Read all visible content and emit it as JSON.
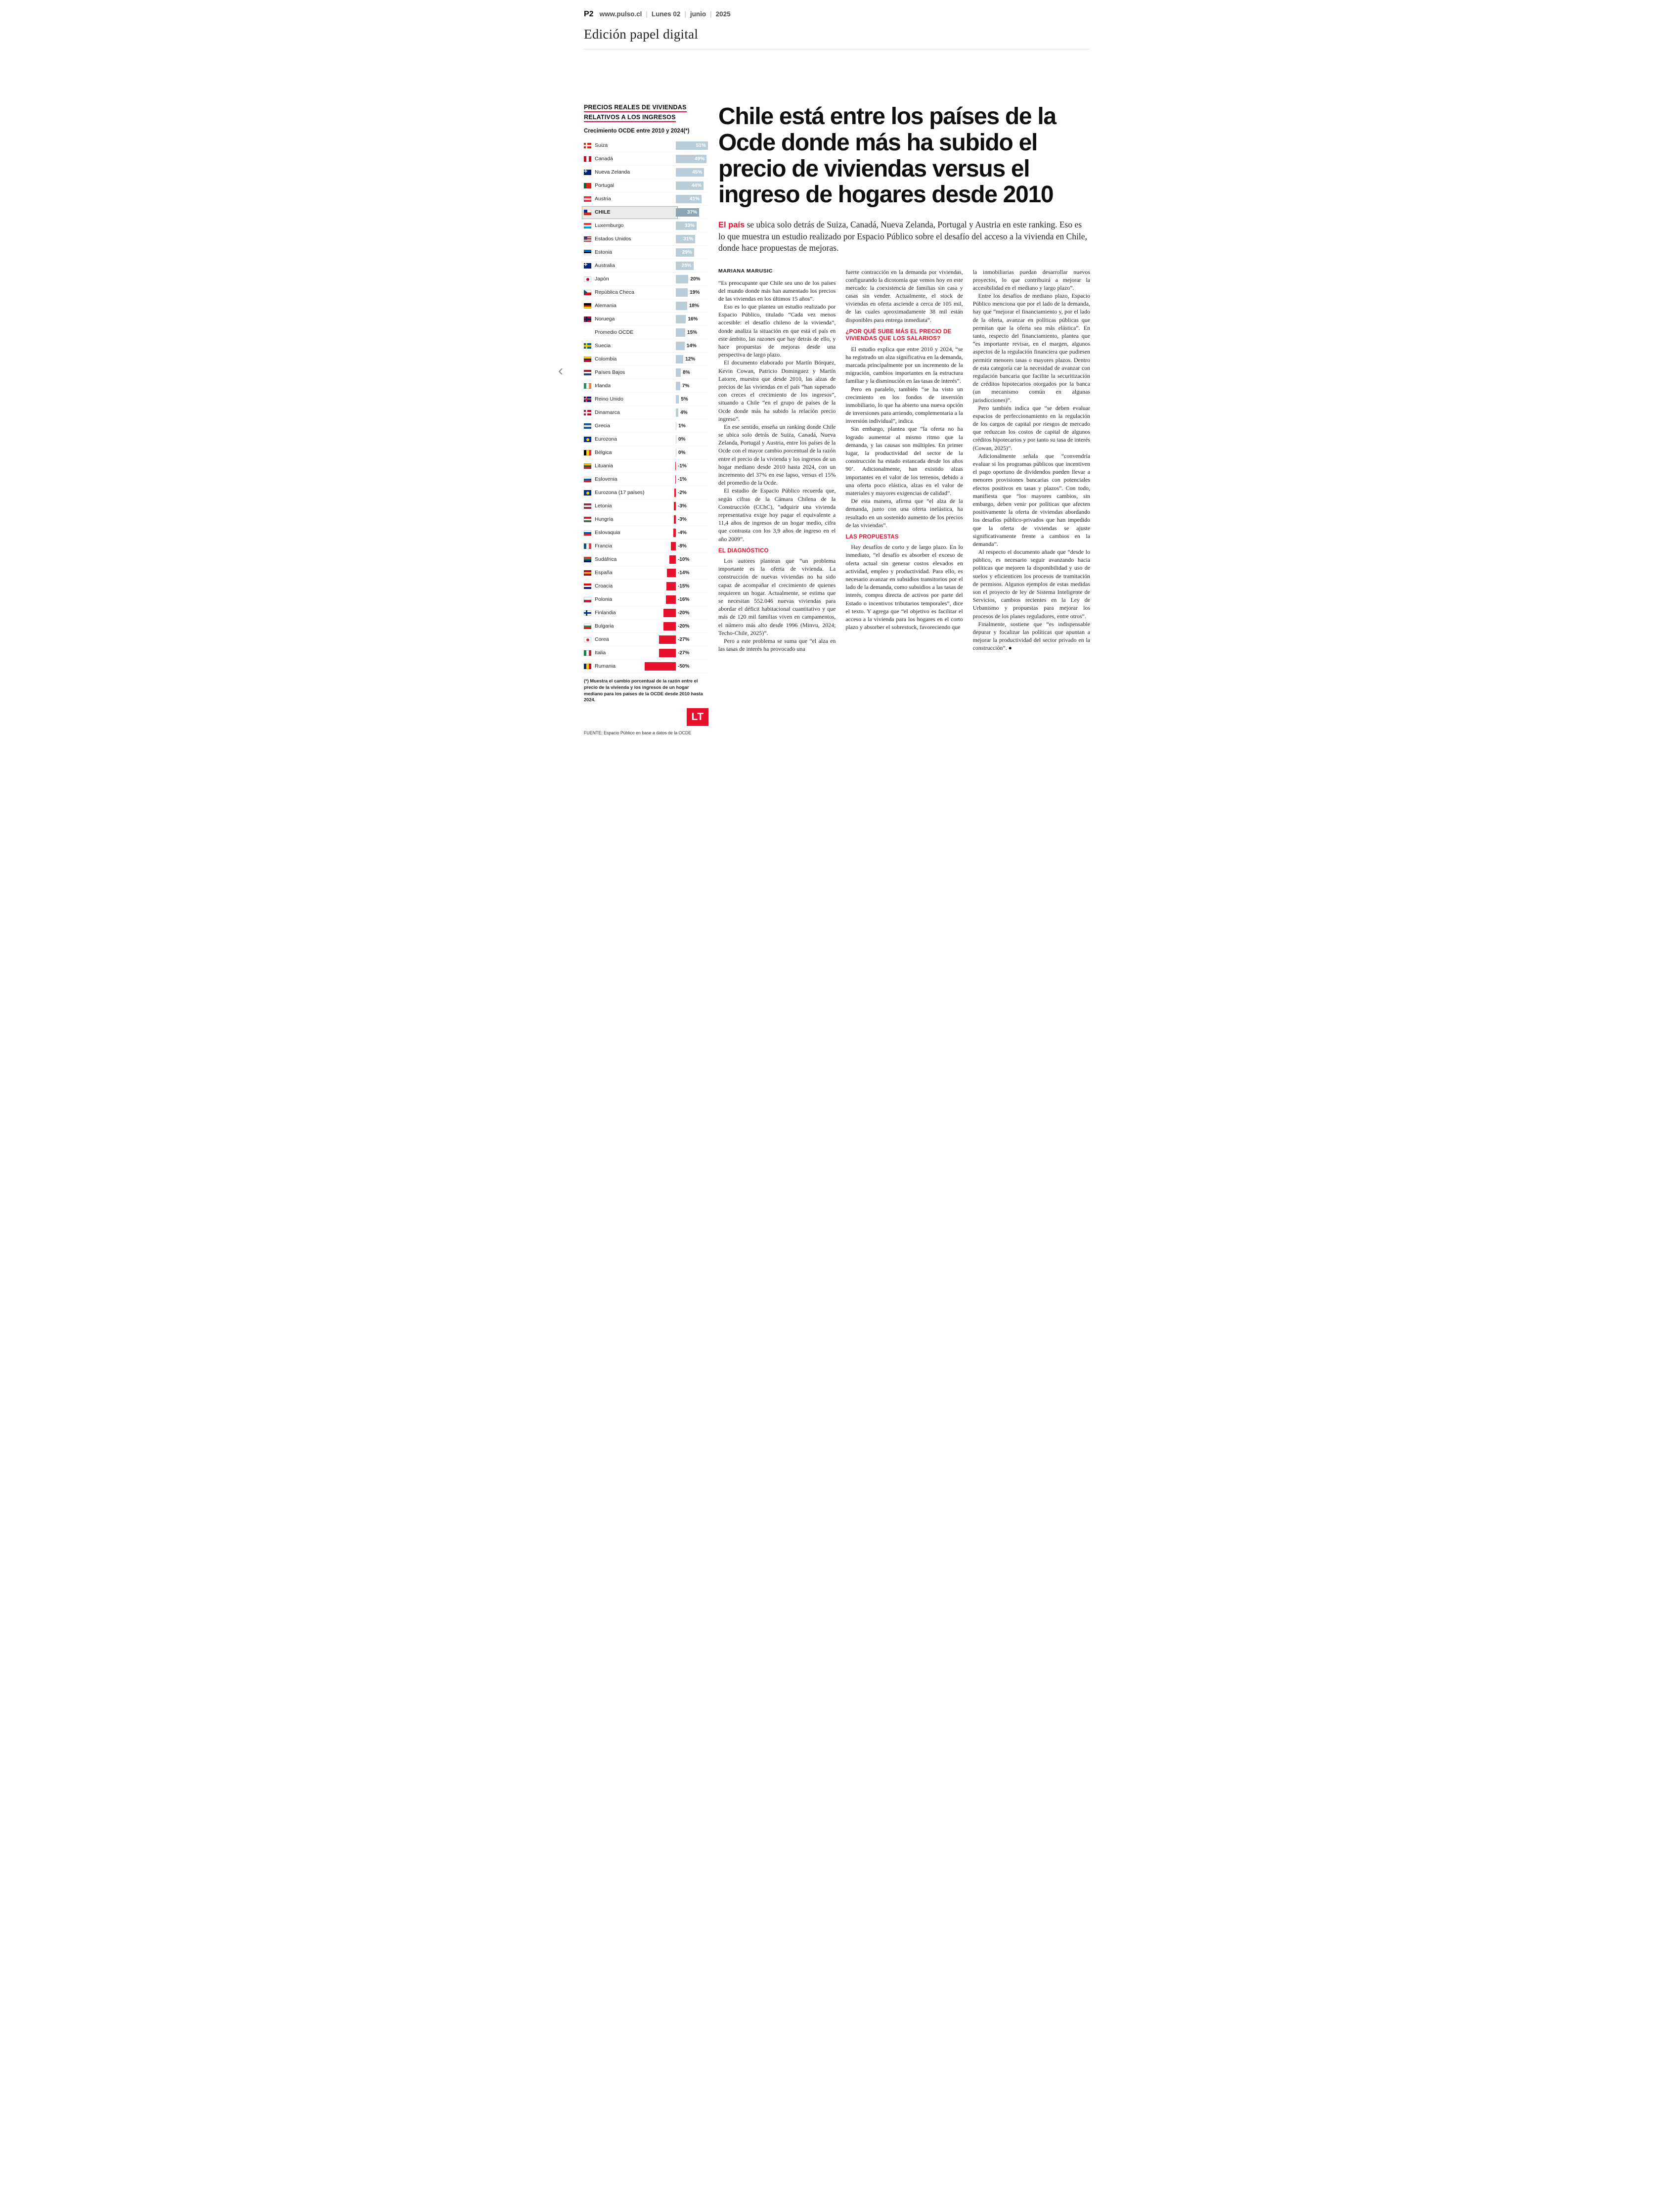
{
  "header": {
    "page_number": "P2",
    "site": "www.pulso.cl",
    "sep": "|",
    "day": "Lunes 02",
    "month": "junio",
    "year": "2025",
    "edition": "Edición papel digital"
  },
  "nav": {
    "prev": "‹"
  },
  "chart": {
    "title_line1": "PRECIOS REALES DE VIVIENDAS",
    "title_line2": "RELATIVOS A LOS INGRESOS",
    "subtitle": "Crecimiento OCDE entre 2010 y 2024(*)",
    "footnote": "(*) Muestra el cambio porcentual de la razón entre el precio de la vivienda y los ingresos de un hogar mediano para los países de la OCDE desde 2010 hasta 2024.",
    "source": "FUENTE: Espacio Público en base a datos de la OCDE",
    "logo_text": "LT",
    "colors": {
      "positive": "#b9cdd8",
      "highlight_bar": "#8aa6b6",
      "negative": "#e8112d",
      "accent": "#e8112d"
    }
  },
  "chart_data": {
    "type": "bar",
    "orientation": "horizontal",
    "title": "Precios reales de viviendas relativos a los ingresos",
    "subtitle": "Crecimiento OCDE entre 2010 y 2024 (*)",
    "unit": "%",
    "highlight": "CHILE",
    "categories": [
      "Suiza",
      "Canadá",
      "Nueva Zelanda",
      "Portugal",
      "Austria",
      "CHILE",
      "Luxemburgo",
      "Estados Unidos",
      "Estonia",
      "Australia",
      "Japón",
      "República Checa",
      "Alemania",
      "Noruega",
      "Promedio OCDE",
      "Suecia",
      "Colombia",
      "Países Bajos",
      "Irlanda",
      "Reino Unido",
      "Dinamarca",
      "Grecia",
      "Eurozona",
      "Bélgica",
      "Lituania",
      "Eslovenia",
      "Eurozona (17 países)",
      "Letonia",
      "Hungría",
      "Eslovaquia",
      "Francia",
      "Sudáfrica",
      "España",
      "Croacia",
      "Polonia",
      "Finlandia",
      "Bulgaria",
      "Corea",
      "Italia",
      "Rumania"
    ],
    "values": [
      51,
      49,
      45,
      44,
      41,
      37,
      33,
      31,
      29,
      28,
      20,
      19,
      18,
      16,
      15,
      14,
      12,
      8,
      7,
      5,
      4,
      1,
      0,
      0,
      -1,
      -1,
      -2,
      -3,
      -3,
      -4,
      -8,
      -10,
      -14,
      -15,
      -16,
      -20,
      -20,
      -27,
      -27,
      -50
    ],
    "flags": [
      {
        "t": "cross",
        "c": [
          "#da291c",
          "#ffffff"
        ]
      },
      {
        "t": "v",
        "c": [
          "#d80621",
          "#ffffff",
          "#d80621"
        ]
      },
      {
        "t": "ukcanton",
        "c": [
          "#00247d",
          "#ffffff"
        ]
      },
      {
        "t": "v",
        "c": [
          "#046a38",
          "#da291c",
          "#da291c"
        ]
      },
      {
        "t": "h",
        "c": [
          "#ef3340",
          "#ffffff",
          "#ef3340"
        ]
      },
      {
        "t": "chile",
        "c": [
          "#ffffff",
          "#d52b1e",
          "#0033a0"
        ]
      },
      {
        "t": "h",
        "c": [
          "#ef3340",
          "#ffffff",
          "#00a2e1"
        ]
      },
      {
        "t": "usa",
        "c": [
          "#b22234",
          "#ffffff",
          "#3c3b6e"
        ]
      },
      {
        "t": "h",
        "c": [
          "#0072ce",
          "#000000",
          "#ffffff"
        ]
      },
      {
        "t": "ukcanton",
        "c": [
          "#00247d",
          "#ffffff"
        ]
      },
      {
        "t": "circle",
        "c": [
          "#ffffff",
          "#bc002d"
        ]
      },
      {
        "t": "cz",
        "c": [
          "#ffffff",
          "#d7141a",
          "#11457e"
        ]
      },
      {
        "t": "h",
        "c": [
          "#000000",
          "#dd0000",
          "#ffce00"
        ]
      },
      {
        "t": "cross",
        "c": [
          "#ba0c2f",
          "#00205b"
        ]
      },
      {
        "t": "none",
        "c": []
      },
      {
        "t": "cross",
        "c": [
          "#006aa7",
          "#fecc02"
        ]
      },
      {
        "t": "h",
        "c": [
          "#ffcd00",
          "#003087",
          "#c8102e"
        ]
      },
      {
        "t": "h",
        "c": [
          "#ae1c28",
          "#ffffff",
          "#21468b"
        ]
      },
      {
        "t": "v",
        "c": [
          "#169b62",
          "#ffffff",
          "#ff883e"
        ]
      },
      {
        "t": "uk",
        "c": [
          "#00247d",
          "#ffffff",
          "#cf142b"
        ]
      },
      {
        "t": "cross",
        "c": [
          "#c8102e",
          "#ffffff"
        ]
      },
      {
        "t": "h",
        "c": [
          "#0d5eaf",
          "#ffffff",
          "#0d5eaf"
        ]
      },
      {
        "t": "circle",
        "c": [
          "#003399",
          "#ffcc00"
        ]
      },
      {
        "t": "v",
        "c": [
          "#000000",
          "#fdda24",
          "#ef3340"
        ]
      },
      {
        "t": "h",
        "c": [
          "#fdb913",
          "#006a44",
          "#c1272d"
        ]
      },
      {
        "t": "h",
        "c": [
          "#ffffff",
          "#005da4",
          "#ed1c24"
        ]
      },
      {
        "t": "circle",
        "c": [
          "#003399",
          "#ffcc00"
        ]
      },
      {
        "t": "h",
        "c": [
          "#9e3039",
          "#ffffff",
          "#9e3039"
        ]
      },
      {
        "t": "h",
        "c": [
          "#ce2939",
          "#ffffff",
          "#477050"
        ]
      },
      {
        "t": "h",
        "c": [
          "#ffffff",
          "#0b4ea2",
          "#ee1c25"
        ]
      },
      {
        "t": "v",
        "c": [
          "#0055a4",
          "#ffffff",
          "#ef4135"
        ]
      },
      {
        "t": "h",
        "c": [
          "#e03c31",
          "#007749",
          "#001489"
        ]
      },
      {
        "t": "h",
        "c": [
          "#aa151b",
          "#f1bf00",
          "#aa151b"
        ]
      },
      {
        "t": "h",
        "c": [
          "#ff0000",
          "#ffffff",
          "#171796"
        ]
      },
      {
        "t": "h",
        "c": [
          "#ffffff",
          "#dc143c"
        ]
      },
      {
        "t": "cross",
        "c": [
          "#ffffff",
          "#003580"
        ]
      },
      {
        "t": "h",
        "c": [
          "#ffffff",
          "#00966e",
          "#d62612"
        ]
      },
      {
        "t": "circle",
        "c": [
          "#ffffff",
          "#cd2e3a"
        ]
      },
      {
        "t": "v",
        "c": [
          "#009246",
          "#ffffff",
          "#ce2b37"
        ]
      },
      {
        "t": "v",
        "c": [
          "#002b7f",
          "#fcd116",
          "#ce1126"
        ]
      }
    ]
  },
  "article": {
    "headline": "Chile está entre los países de la Ocde donde más ha subido el precio de viviendas versus el ingreso de hogares desde 2010",
    "lead_accent": "El país",
    "lead_rest": " se ubica solo detrás de Suiza, Canadá, Nueva Zelanda, Portugal y Austria en este ranking. Eso es lo que muestra un estudio realizado por Espacio Público sobre el desafío del acceso a la vivienda en Chile, donde hace propuestas de mejoras.",
    "byline": "MARIANA MARUSIC",
    "columns": [
      [
        {
          "type": "p",
          "text": "“Es preocupante que Chile sea uno de los países del mundo donde más han aumentado los precios de las viviendas en los últimos 15 años”."
        },
        {
          "type": "p",
          "text": "Eso es lo que plantea un estudio realizado por Espacio Público, titulado “Cada vez menos accesible: el desafío chileno de la vivienda”, donde analiza la situación en que está el país en este ámbito, las razones que hay detrás de ello, y hace propuestas de mejoras desde una perspectiva de largo plazo."
        },
        {
          "type": "p",
          "text": "El documento elaborado por Martín Bórquez, Kevin Cowan, Patricio Dominguez y Martín Latorre, muestra que desde 2010, las alzas de precios de las viviendas en el país “han superado con creces el crecimiento de los ingresos”, situando a Chile “en el grupo de países de la Ocde donde más ha subido la relación precio ingreso”."
        },
        {
          "type": "p",
          "text": "En ese sentido, enseña un ranking donde Chile se ubica solo detrás de Suiza, Canadá, Nueva Zelanda, Portugal y Austria, entre los países de la Ocde con el mayor cambio porcentual de la razón entre el precio de la vivienda y los ingresos de un hogar mediano desde 2010 hasta 2024, con un incremento del 37% en ese lapso, versus el 15% del promedio de la Ocde."
        },
        {
          "type": "p",
          "text": "El estudio de Espacio Público recuerda que, según cifras de la Cámara Chilena de la Construcción (CChC), “adquirir una vivienda representativa exige hoy pagar el equivalente a 11,4 años de ingresos de un hogar medio, cifra que contrasta con los 3,9 años de ingreso en el año 2009”."
        },
        {
          "type": "h",
          "text": "EL DIAGNÓSTICO"
        },
        {
          "type": "p",
          "text": "Los autores plantean que “un problema importante es la oferta de vivienda. La construcción de nuevas viviendas no ha sido capaz de acompañar el crecimiento de quienes requieren un hogar. Actualmente, se estima que se necesitan 552.046 nuevas viviendas para abordar el déficit habitacional cuantitativo y que más de 120 mil familias viven en campamentos, el número más alto desde 1996 (Minvu, 2024; Techo-Chile, 2025)”."
        },
        {
          "type": "p",
          "text": "Pero a este problema se suma que “el alza en las tasas de interés ha provocado una"
        }
      ],
      [
        {
          "type": "p",
          "text": "fuerte contracción en la demanda por viviendas, configurando la dicotomía que vemos hoy en este mercado: la coexistencia de familias sin casa y casas sin vender. Actualmente, el stock de viviendas en oferta asciende a cerca de 105 mil, de las cuales aproximadamente 38 mil están disponibles para entrega inmediata”."
        },
        {
          "type": "h",
          "text": "¿POR QUÉ SUBE MÁS EL PRECIO DE VIVIENDAS QUE LOS SALARIOS?"
        },
        {
          "type": "p",
          "text": "El estudio explica que entre 2010 y 2024, “se ha registrado un alza significativa en la demanda, marcada principalmente por un incremento de la migración, cambios importantes en la estructura familiar y la disminución en las tasas de interés”."
        },
        {
          "type": "p",
          "text": "Pero en paralelo, también “se ha visto un crecimiento en los fondos de inversión inmobiliario, lo que ha abierto una nueva opción de inversiones para arriendo, complementaria a la inversión individual”, indica."
        },
        {
          "type": "p",
          "text": "Sin embargo, plantea que “la oferta no ha logrado aumentar al mismo ritmo que la demanda, y las causas son múltiples. En primer lugar, la productividad del sector de la construcción ha estado estancada desde los años 90’. Adicionalmente, han existido alzas importantes en el valor de los terrenos, debido a una oferta poco elástica, alzas en el valor de materiales y mayores exigencias de calidad”."
        },
        {
          "type": "p",
          "text": "De esta manera, afirma que “el alza de la demanda, junto con una oferta inelástica, ha resultado en un sostenido aumento de los precios de las viviendas”."
        },
        {
          "type": "h",
          "text": "LAS PROPUESTAS"
        },
        {
          "type": "p",
          "text": "Hay desafíos de corto y de largo plazo. En lo inmediato, “el desafío es absorber el exceso de oferta actual sin generar costos elevados en actividad, empleo y productividad. Para ello, es necesario avanzar en subsidios transitorios por el lado de la demanda, como subsidios a las tasas de interés, compra directa de activos por parte del Estado o incentivos tributarios temporales”, dice el texto. Y agrega que “el objetivo es facilitar el acceso a la vivienda para los hogares en el corto plazo y absorber el sobrestock, favoreciendo que"
        }
      ],
      [
        {
          "type": "p",
          "text": "la inmobiliarias puedan desarrollar nuevos proyectos, lo que contribuirá a mejorar la accesibilidad en el mediano y largo plazo”."
        },
        {
          "type": "p",
          "text": "Entre los desafíos de mediano plazo, Espacio Público menciona que por el lado de la demanda, hay que “mejorar el financiamiento y, por el lado de la oferta, avanzar en políticas públicas que permitan que la oferta sea más elástica”. En tanto, respecto del financiamiento, plantea que “es importante revisar, en el margen, algunos aspectos de la regulación financiera que pudiesen permitir menores tasas o mayores plazos. Dentro de esta categoría cae la necesidad de avanzar con regulación bancaria que facilite la securitización de créditos hipotecarios otorgados por la banca (un mecanismo común en algunas jurisdicciones)”."
        },
        {
          "type": "p",
          "text": "Pero también indica que “se deben evaluar espacios de perfeccionamiento en la regulación de los cargos de capital por riesgos de mercado que reduzcan los costos de capital de algunos créditos hipotecarios y por tanto su tasa de interés (Cowan, 2025)”."
        },
        {
          "type": "p",
          "text": "Adicionalmente señala que “convendría evaluar si los programas públicos que incentiven el pago oportuno de dividendos pueden llevar a menores provisiones bancarias con potenciales efectos positivos en tasas y plazos”. Con todo, manifiesta que “los mayores cambios, sin embargo, deben venir por políticas que afecten positivamente la oferta de viviendas abordando los desafíos público-privados que han impedido que la oferta de viviendas se ajuste significativamente frente a cambios en la demanda”."
        },
        {
          "type": "p",
          "text": "Al respecto el documento añade que “desde lo público, es necesario seguir avanzando hacia políticas que mejoren la disponibilidad y uso de suelos y eficienticen los procesos de tramitación de permisos. Algunos ejemplos de estas medidas son el proyecto de ley de Sistema Inteligente de Servicios, cambios recientes en la Ley de Urbanismo y propuestas para mejorar los procesos de los planes reguladores, entre otros”."
        },
        {
          "type": "p",
          "text": "Finalmente, sostiene que “es indispensable depurar y focalizar las políticas que apuntan a mejorar la productividad del sector privado en la construcción”. ●"
        }
      ]
    ]
  }
}
